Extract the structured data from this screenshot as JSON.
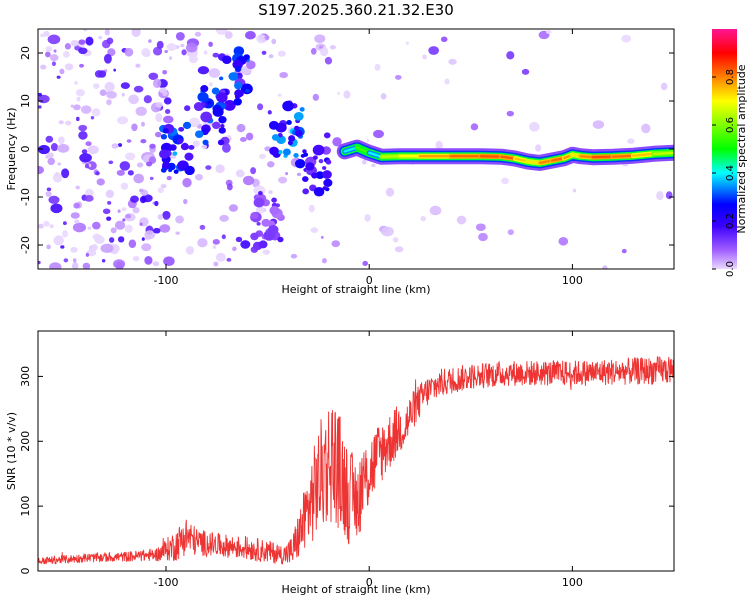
{
  "title": "S197.2025.360.21.32.E30",
  "chart_data": [
    {
      "type": "heatmap",
      "name": "spectrogram",
      "xlabel": "Height of straight line (km)",
      "ylabel": "Frequency (Hz)",
      "xlim": [
        -163,
        150
      ],
      "ylim": [
        -25,
        25
      ],
      "xticks": [
        -100,
        0,
        100
      ],
      "xtick_labels": [
        "-100",
        "0",
        "100"
      ],
      "yticks": [
        -20,
        -10,
        0,
        10,
        20
      ],
      "ytick_labels": [
        "-20",
        "-10",
        "0",
        "10",
        "20"
      ],
      "colorbar": {
        "label": "Normalized spectral amplitude",
        "range": [
          0,
          1
        ],
        "ticks": [
          0.0,
          0.2,
          0.4,
          0.6,
          0.8
        ],
        "tick_labels": [
          "0.0",
          "0.2",
          "0.4",
          "0.6",
          "0.8"
        ],
        "colors": [
          "#e6d6ff",
          "#7a2cff",
          "#0000ff",
          "#00ffff",
          "#00ff00",
          "#ffff00",
          "#ff7f00",
          "#ff0000",
          "#ff1493"
        ]
      },
      "ridge": {
        "x": [
          -12,
          -6,
          0,
          6,
          15,
          25,
          40,
          55,
          65,
          72,
          78,
          84,
          90,
          96,
          100,
          104,
          110,
          120,
          130,
          140,
          150
        ],
        "y": [
          -0.5,
          0.3,
          -0.8,
          -1.6,
          -1.5,
          -1.5,
          -1.5,
          -1.5,
          -1.6,
          -2.0,
          -2.6,
          -2.9,
          -2.4,
          -1.9,
          -1.2,
          -1.5,
          -1.7,
          -1.6,
          -1.4,
          -1.0,
          -0.8
        ],
        "amplitude": [
          0.4,
          0.55,
          0.4,
          0.65,
          0.7,
          0.78,
          0.82,
          0.84,
          0.83,
          0.75,
          0.72,
          0.8,
          0.82,
          0.78,
          0.72,
          0.8,
          0.84,
          0.82,
          0.75,
          0.65,
          0.55
        ]
      },
      "clusters": [
        {
          "x": -95,
          "y": 0,
          "amplitude": 0.35
        },
        {
          "x": -66,
          "y": 15,
          "amplitude": 0.3
        },
        {
          "x": -77,
          "y": 7,
          "amplitude": 0.3
        },
        {
          "x": -40,
          "y": 3,
          "amplitude": 0.35
        },
        {
          "x": -27,
          "y": -3,
          "amplitude": 0.25
        },
        {
          "x": -50,
          "y": -15,
          "amplitude": 0.15
        }
      ]
    },
    {
      "type": "line",
      "name": "snr",
      "xlabel": "Height of straight line (km)",
      "ylabel": "SNR (10 * v/v)",
      "xlim": [
        -163,
        150
      ],
      "ylim": [
        0,
        370
      ],
      "xticks": [
        -100,
        0,
        100
      ],
      "xtick_labels": [
        "-100",
        "0",
        "100"
      ],
      "yticks": [
        0,
        100,
        200,
        300
      ],
      "ytick_labels": [
        "0",
        "100",
        "200",
        "300"
      ],
      "color": "#ee3333",
      "series": [
        {
          "name": "SNR",
          "x": [
            -163,
            -140,
            -120,
            -105,
            -95,
            -90,
            -85,
            -75,
            -60,
            -50,
            -42,
            -38,
            -34,
            -30,
            -26,
            -22,
            -18,
            -14,
            -10,
            -6,
            -2,
            2,
            6,
            10,
            15,
            18,
            22,
            28,
            35,
            50,
            70,
            100,
            150
          ],
          "y": [
            15,
            20,
            22,
            25,
            40,
            55,
            45,
            40,
            35,
            30,
            25,
            30,
            60,
            95,
            130,
            160,
            175,
            150,
            115,
            110,
            140,
            165,
            185,
            200,
            220,
            225,
            250,
            275,
            290,
            300,
            305,
            305,
            310
          ],
          "noise": [
            6,
            7,
            8,
            10,
            25,
            30,
            22,
            18,
            18,
            18,
            15,
            25,
            40,
            60,
            80,
            95,
            100,
            90,
            75,
            65,
            60,
            55,
            50,
            45,
            40,
            38,
            30,
            25,
            22,
            20,
            20,
            20,
            22
          ]
        }
      ]
    }
  ]
}
